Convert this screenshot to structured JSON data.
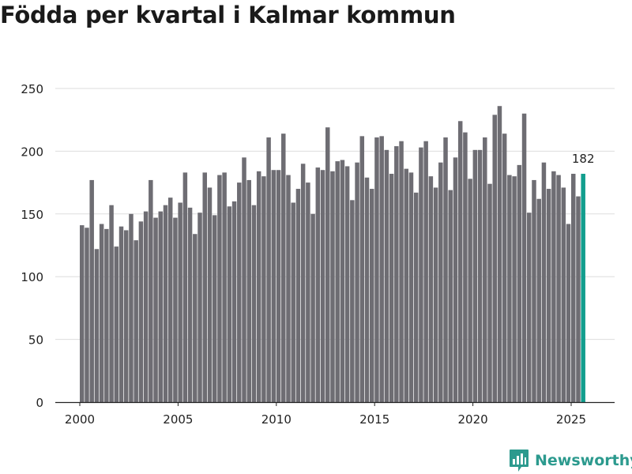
{
  "chart_data": {
    "type": "bar",
    "title": "Födda per kvartal i Kalmar kommun",
    "xlabel": "",
    "ylabel": "",
    "ylim": [
      0,
      250
    ],
    "y_ticks": [
      0,
      50,
      100,
      150,
      200,
      250
    ],
    "x_ticks": [
      2000,
      2005,
      2010,
      2015,
      2020,
      2025
    ],
    "grid": true,
    "start_year": 2000,
    "highlight_label": "182",
    "colors": {
      "bar": "#6e6d73",
      "highlight": "#129e8e",
      "grid": "#dddddd",
      "axis": "#222222"
    },
    "values": [
      141,
      139,
      177,
      122,
      142,
      138,
      157,
      124,
      140,
      137,
      150,
      129,
      144,
      152,
      177,
      147,
      152,
      157,
      163,
      147,
      159,
      183,
      155,
      134,
      151,
      183,
      171,
      149,
      181,
      183,
      156,
      160,
      175,
      195,
      177,
      157,
      184,
      180,
      211,
      185,
      185,
      214,
      181,
      159,
      170,
      190,
      175,
      150,
      187,
      185,
      219,
      184,
      192,
      193,
      188,
      161,
      191,
      212,
      179,
      170,
      211,
      212,
      201,
      182,
      204,
      208,
      186,
      183,
      167,
      203,
      208,
      180,
      171,
      191,
      211,
      169,
      195,
      224,
      215,
      178,
      201,
      201,
      211,
      174,
      229,
      236,
      214,
      181,
      180,
      189,
      230,
      151,
      177,
      162,
      191,
      170,
      184,
      181,
      171,
      142,
      182,
      164,
      182
    ]
  },
  "branding": {
    "logo_text": "Newsworthy",
    "logo_icon": "newsworthy-chart-icon"
  }
}
